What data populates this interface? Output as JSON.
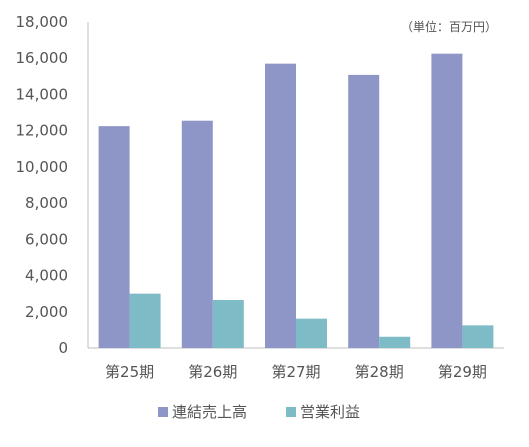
{
  "chart_data": {
    "type": "bar",
    "unit_note": "（単位：百万円）",
    "categories": [
      "第25期",
      "第26期",
      "第27期",
      "第28期",
      "第29期"
    ],
    "series": [
      {
        "name": "連結売上高",
        "color": "#8E95C7",
        "values": [
          12250,
          12550,
          15700,
          15080,
          16250
        ]
      },
      {
        "name": "営業利益",
        "color": "#7DBBC6",
        "values": [
          3000,
          2650,
          1620,
          620,
          1250
        ]
      }
    ],
    "ylim": [
      0,
      18000
    ],
    "yticks": [
      "0",
      "2,000",
      "4,000",
      "6,000",
      "8,000",
      "10,000",
      "12,000",
      "14,000",
      "16,000",
      "18,000"
    ],
    "ytick_values": [
      0,
      2000,
      4000,
      6000,
      8000,
      10000,
      12000,
      14000,
      16000,
      18000
    ],
    "grid": false,
    "legend_position": "bottom"
  }
}
